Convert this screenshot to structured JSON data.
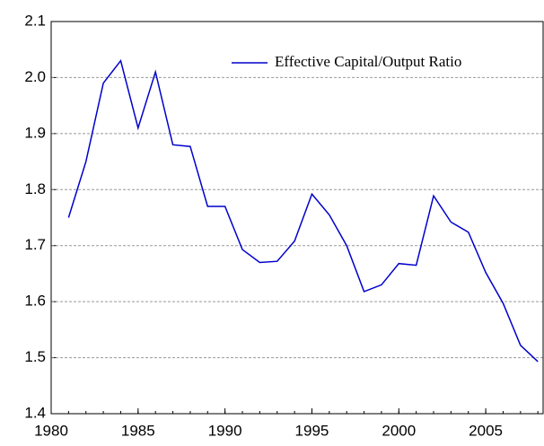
{
  "chart_data": {
    "type": "line",
    "x": [
      1981,
      1982,
      1983,
      1984,
      1985,
      1986,
      1987,
      1988,
      1989,
      1990,
      1991,
      1992,
      1993,
      1994,
      1995,
      1996,
      1997,
      1998,
      1999,
      2000,
      2001,
      2002,
      2003,
      2004,
      2005,
      2006,
      2007,
      2008
    ],
    "series": [
      {
        "name": "Effective Capital/Output Ratio",
        "color": "#0000cc",
        "values": [
          1.75,
          1.85,
          1.99,
          2.03,
          1.91,
          2.01,
          1.88,
          1.877,
          1.77,
          1.77,
          1.693,
          1.67,
          1.672,
          1.708,
          1.792,
          1.755,
          1.7,
          1.618,
          1.63,
          1.668,
          1.665,
          1.789,
          1.742,
          1.724,
          1.652,
          1.597,
          1.522,
          1.493
        ]
      }
    ],
    "xlim": [
      1980,
      2008.3
    ],
    "xticks": [
      1980,
      1985,
      1990,
      1995,
      2000,
      2005
    ],
    "ylim": [
      1.4,
      2.1
    ],
    "yticks": [
      1.4,
      1.5,
      1.6,
      1.7,
      1.8,
      1.9,
      {
        "value": 2.0,
        "label": "2.0"
      },
      2.1
    ],
    "grid": true,
    "legend": "top-right"
  }
}
